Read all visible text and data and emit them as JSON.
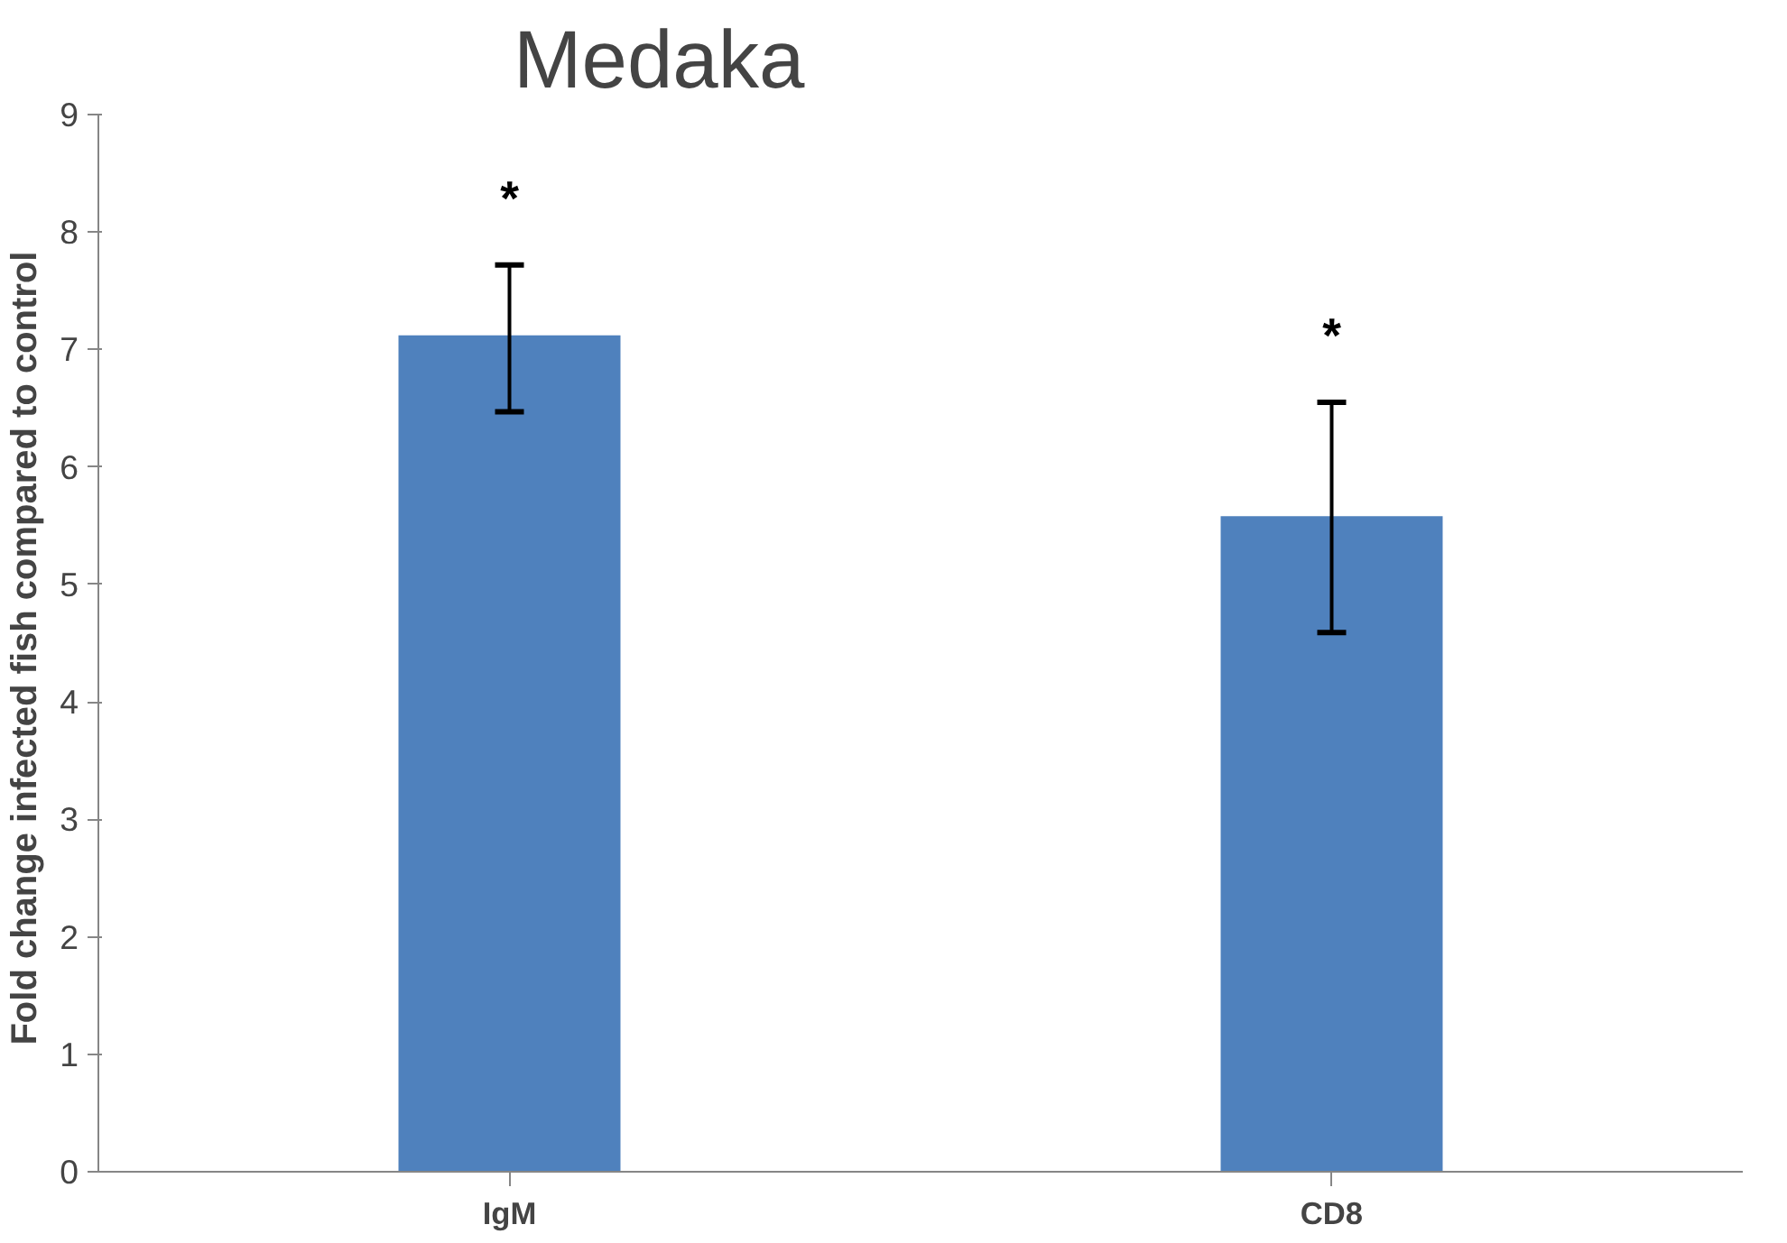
{
  "chart_data": {
    "type": "bar",
    "title": "Medaka",
    "ylabel": "Fold change infected  fish compared to control",
    "categories": [
      "IgM",
      "CD8"
    ],
    "values": [
      7.12,
      5.58
    ],
    "errors": [
      [
        6.47,
        7.72
      ],
      [
        4.59,
        6.55
      ]
    ],
    "color": "#4f81bd",
    "ylim": [
      0,
      9
    ],
    "yticks": [
      0,
      1,
      2,
      3,
      4,
      5,
      6,
      7,
      8,
      9
    ],
    "grid": false,
    "annotations": [
      "*",
      "*"
    ]
  }
}
